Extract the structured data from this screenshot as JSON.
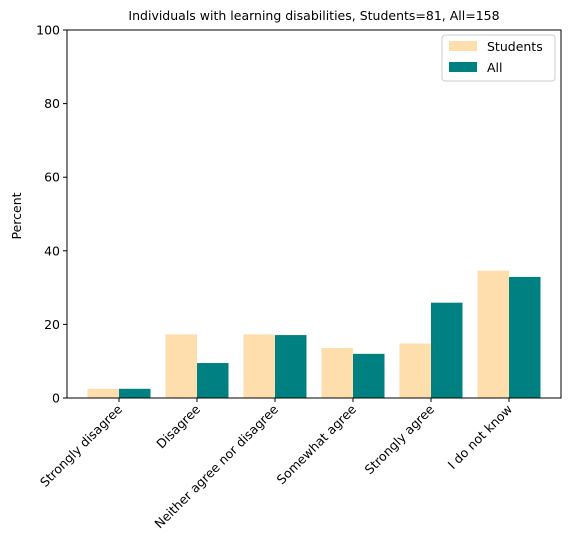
{
  "chart_data": {
    "type": "bar",
    "title": "Individuals with learning disabilities, Students=81, All=158",
    "xlabel": "",
    "ylabel": "Percent",
    "ylim": [
      0,
      100
    ],
    "yticks": [
      0,
      20,
      40,
      60,
      80,
      100
    ],
    "grid": false,
    "legend_position": "top-right",
    "categories": [
      "Strongly disagree",
      "Disagree",
      "Neither agree nor disagree",
      "Somewhat agree",
      "Strongly agree",
      "I do not know"
    ],
    "series": [
      {
        "name": "Students",
        "color": "#FFDEAD",
        "values": [
          2.5,
          17.3,
          17.3,
          13.6,
          14.8,
          34.6
        ]
      },
      {
        "name": "All",
        "color": "#008080",
        "values": [
          2.5,
          9.5,
          17.1,
          12.0,
          25.9,
          32.9
        ]
      }
    ]
  }
}
